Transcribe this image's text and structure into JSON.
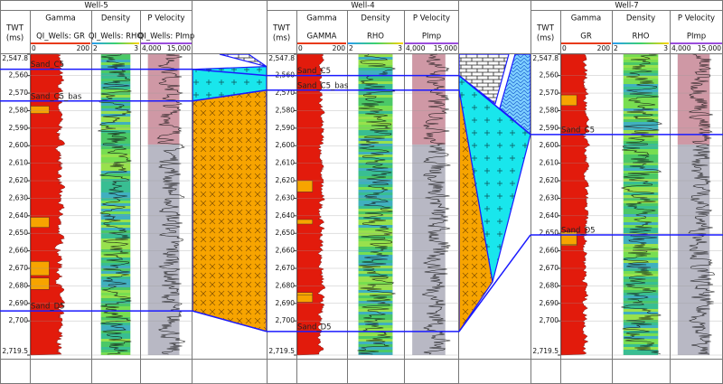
{
  "twt_axis": {
    "title": "TWT",
    "unit": "(ms)",
    "lim": [
      2547.8,
      2719.5
    ],
    "ticks": [
      {
        "value": 2547.8,
        "label": "2,547.8"
      },
      {
        "value": 2560,
        "label": "2,560"
      },
      {
        "value": 2570,
        "label": "2,570"
      },
      {
        "value": 2580,
        "label": "2,580"
      },
      {
        "value": 2590,
        "label": "2,590"
      },
      {
        "value": 2600,
        "label": "2,600"
      },
      {
        "value": 2610,
        "label": "2,610"
      },
      {
        "value": 2620,
        "label": "2,620"
      },
      {
        "value": 2630,
        "label": "2,630"
      },
      {
        "value": 2640,
        "label": "2,640"
      },
      {
        "value": 2650,
        "label": "2,650"
      },
      {
        "value": 2660,
        "label": "2,660"
      },
      {
        "value": 2670,
        "label": "2,670"
      },
      {
        "value": 2680,
        "label": "2,680"
      },
      {
        "value": 2690,
        "label": "2,690"
      },
      {
        "value": 2700,
        "label": "2,700"
      },
      {
        "value": 2719.5,
        "label": "2,719.5"
      }
    ]
  },
  "wells": [
    {
      "name": "Well-5",
      "tracks": [
        {
          "title": "Gamma",
          "curve": "QI_Wells: GR",
          "min": "0",
          "max": "200"
        },
        {
          "title": "Density",
          "curve": "QI_Wells: RHO",
          "min": "2",
          "max": "3"
        },
        {
          "title": "P Velocity",
          "curve": "QI_Wells: PImp",
          "min": "4,000",
          "max": "15,000"
        }
      ],
      "markers": [
        {
          "name": "Sand_C5",
          "twt": 2556.4
        },
        {
          "name": "Sand_C5_bas",
          "twt": 2574.5
        },
        {
          "name": "Sand_D5",
          "twt": 2694.3
        }
      ]
    },
    {
      "name": "Well-4",
      "tracks": [
        {
          "title": "Gamma",
          "curve": "GAMMA",
          "min": "0",
          "max": "200"
        },
        {
          "title": "Density",
          "curve": "RHO",
          "min": "2",
          "max": "3"
        },
        {
          "title": "P Velocity",
          "curve": "PImp",
          "min": "4,000",
          "max": "15,000"
        }
      ],
      "markers": [
        {
          "name": "Sand_C5",
          "twt": 2560
        },
        {
          "name": "Sand_C5_bas",
          "twt": 2568.3
        },
        {
          "name": "Sand_D5",
          "twt": 2706
        }
      ]
    },
    {
      "name": "Well-7",
      "tracks": [
        {
          "title": "Gamma",
          "curve": "GR",
          "min": "0",
          "max": "200"
        },
        {
          "title": "Density",
          "curve": "RHO",
          "min": "2",
          "max": "3"
        },
        {
          "title": "P Velocity",
          "curve": "PImp",
          "min": "4,000",
          "max": "15,000"
        }
      ],
      "markers": [
        {
          "name": "Sand_C5",
          "twt": 2593.6
        },
        {
          "name": "Sand_D5",
          "twt": 2650.9
        }
      ]
    }
  ]
}
